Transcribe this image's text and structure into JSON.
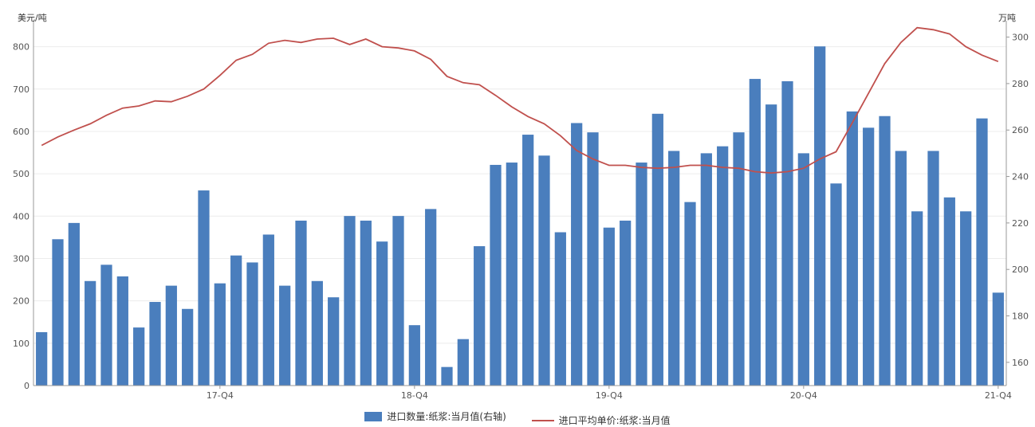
{
  "chart_data": {
    "type": "bar",
    "left_axis_unit": "美元/吨",
    "right_axis_unit": "万吨",
    "left_ylim": [
      0,
      850
    ],
    "left_yticks": [
      0,
      100,
      200,
      300,
      400,
      500,
      600,
      700,
      800
    ],
    "right_ylim": [
      150,
      305
    ],
    "right_yticks": [
      160,
      180,
      200,
      220,
      240,
      260,
      280,
      300
    ],
    "x_tick_labels": [
      {
        "index": 11,
        "label": "17-Q4"
      },
      {
        "index": 23,
        "label": "18-Q4"
      },
      {
        "index": 35,
        "label": "19-Q4"
      },
      {
        "index": 47,
        "label": "20-Q4"
      },
      {
        "index": 59,
        "label": "21-Q4"
      }
    ],
    "grid": true,
    "legend_position": "bottom",
    "series": [
      {
        "name": "进口数量:纸浆:当月值(右轴)",
        "kind": "bar",
        "axis": "right",
        "color": "#4a7ebd",
        "values": [
          173,
          213,
          220,
          195,
          202,
          197,
          175,
          186,
          193,
          183,
          234,
          194,
          206,
          203,
          215,
          193,
          221,
          195,
          188,
          223,
          221,
          212,
          223,
          176,
          226,
          158,
          170,
          210,
          245,
          246,
          258,
          249,
          216,
          263,
          259,
          218,
          221,
          246,
          267,
          251,
          229,
          250,
          253,
          259,
          282,
          271,
          281,
          250,
          296,
          237,
          268,
          261,
          266,
          251,
          225,
          251,
          231,
          225,
          265,
          190
        ]
      },
      {
        "name": "进口平均单价:纸浆:当月值",
        "kind": "line",
        "axis": "left",
        "color": "#c0504d",
        "values": [
          567,
          587,
          603,
          618,
          638,
          655,
          660,
          672,
          670,
          683,
          700,
          732,
          768,
          782,
          808,
          815,
          810,
          818,
          820,
          805,
          818,
          800,
          797,
          790,
          770,
          730,
          715,
          710,
          685,
          658,
          635,
          618,
          590,
          555,
          535,
          520,
          520,
          515,
          513,
          515,
          520,
          520,
          515,
          513,
          505,
          502,
          505,
          513,
          535,
          552,
          620,
          690,
          760,
          810,
          845,
          840,
          830,
          800,
          780,
          765
        ]
      }
    ]
  },
  "legend": {
    "bar_label": "进口数量:纸浆:当月值(右轴)",
    "line_label": "进口平均单价:纸浆:当月值"
  }
}
